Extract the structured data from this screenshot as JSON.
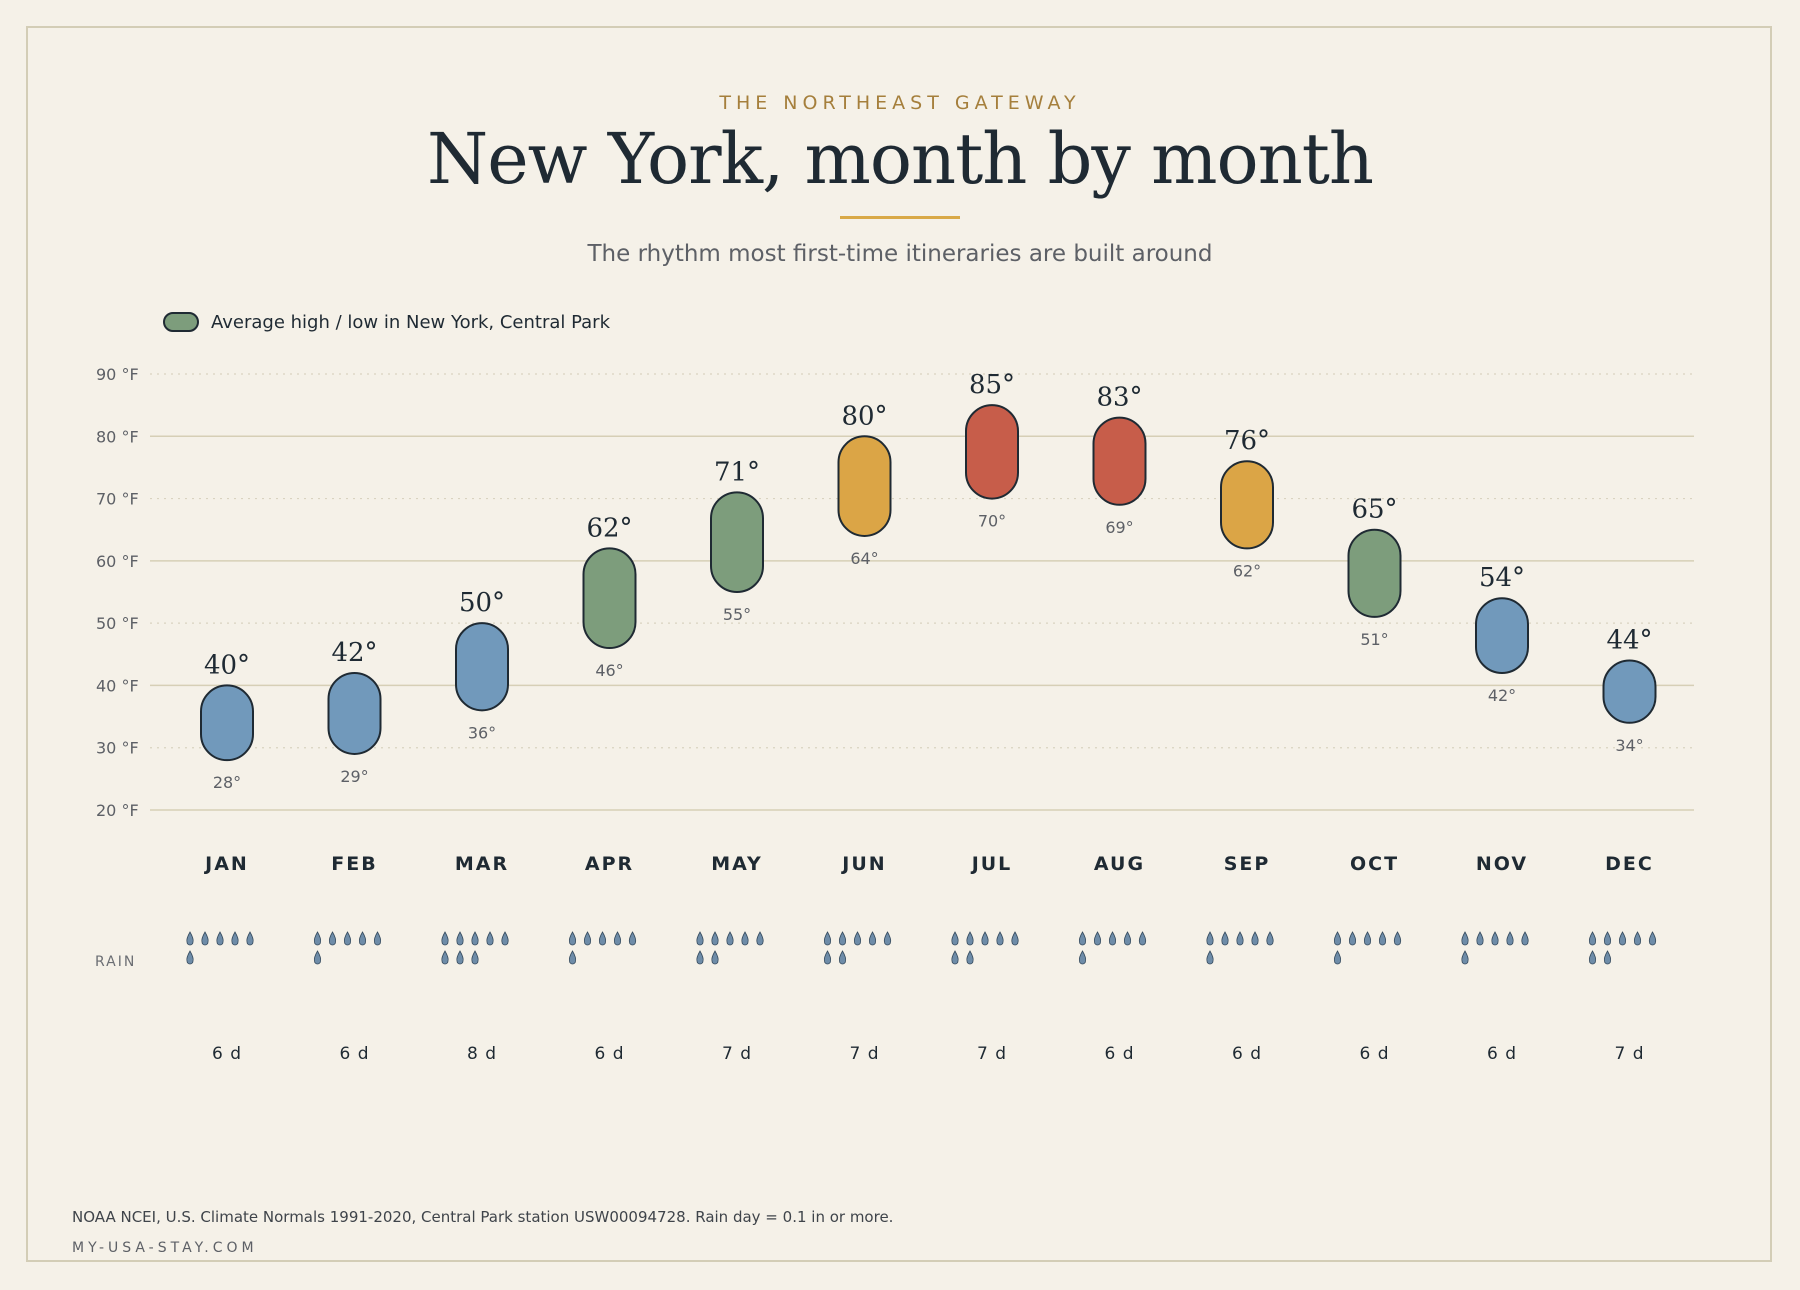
{
  "header": {
    "eyebrow": "THE NORTHEAST GATEWAY",
    "title": "New York, month by month",
    "subtitle": "The rhythm most first-time itineraries are built around"
  },
  "legend": {
    "label": "Average high / low in New York, Central Park",
    "swatch_color": "#7d9d7c"
  },
  "footer": {
    "source": "NOAA NCEI, U.S. Climate Normals 1991-2020, Central Park station USW00094728. Rain day = 0.1 in or more.",
    "site": "MY-USA-STAY.COM"
  },
  "chart_data": {
    "type": "range-bar",
    "y_unit_suffix": "°F",
    "ylim": [
      20,
      90
    ],
    "yticks": [
      20,
      30,
      40,
      50,
      60,
      70,
      80,
      90
    ],
    "ytick_labels": [
      "20 °F",
      "30 °F",
      "40 °F",
      "50 °F",
      "60 °F",
      "70 °F",
      "80 °F",
      "90 °F"
    ],
    "grid": true,
    "legend_position": "top-left",
    "rain_row_label": "RAIN",
    "categories": [
      "JAN",
      "FEB",
      "MAR",
      "APR",
      "MAY",
      "JUN",
      "JUL",
      "AUG",
      "SEP",
      "OCT",
      "NOV",
      "DEC"
    ],
    "high": [
      40,
      42,
      50,
      62,
      71,
      80,
      85,
      83,
      76,
      65,
      54,
      44
    ],
    "low": [
      28,
      29,
      36,
      46,
      55,
      64,
      70,
      69,
      62,
      51,
      42,
      34
    ],
    "high_labels": [
      "40°",
      "42°",
      "50°",
      "62°",
      "71°",
      "80°",
      "85°",
      "83°",
      "76°",
      "65°",
      "54°",
      "44°"
    ],
    "low_labels": [
      "28°",
      "29°",
      "36°",
      "46°",
      "55°",
      "64°",
      "70°",
      "69°",
      "62°",
      "51°",
      "42°",
      "34°"
    ],
    "rain_days": [
      6,
      6,
      8,
      6,
      7,
      7,
      7,
      6,
      6,
      6,
      6,
      7
    ],
    "rain_labels": [
      "6 d",
      "6 d",
      "8 d",
      "6 d",
      "7 d",
      "7 d",
      "7 d",
      "6 d",
      "6 d",
      "6 d",
      "6 d",
      "7 d"
    ],
    "bar_colors": [
      "#7199bb",
      "#7199bb",
      "#7199bb",
      "#7d9d7c",
      "#7d9d7c",
      "#dba546",
      "#c75d4a",
      "#c75d4a",
      "#dba546",
      "#7d9d7c",
      "#7199bb",
      "#7199bb"
    ],
    "drop_color": "#6e8ca8"
  }
}
